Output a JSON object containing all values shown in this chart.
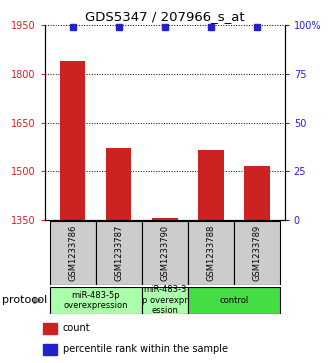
{
  "title": "GDS5347 / 207966_s_at",
  "samples": [
    "GSM1233786",
    "GSM1233787",
    "GSM1233790",
    "GSM1233788",
    "GSM1233789"
  ],
  "counts": [
    1840,
    1570,
    1355,
    1565,
    1515
  ],
  "percentiles": [
    99,
    99,
    99,
    99,
    99
  ],
  "ylim_left": [
    1350,
    1950
  ],
  "ylim_right": [
    0,
    100
  ],
  "yticks_left": [
    1350,
    1500,
    1650,
    1800,
    1950
  ],
  "yticks_right": [
    0,
    25,
    50,
    75,
    100
  ],
  "yticks_right_labels": [
    "0",
    "25",
    "50",
    "75",
    "100%"
  ],
  "bar_color": "#cc2222",
  "dot_color": "#2222cc",
  "protocol_label": "protocol",
  "legend_count_label": "count",
  "legend_percentile_label": "percentile rank within the sample",
  "background_color": "#ffffff",
  "sample_box_color": "#cccccc",
  "group_info": [
    {
      "samples": [
        0,
        1
      ],
      "label": "miR-483-5p\noverexpression",
      "color": "#aaffaa"
    },
    {
      "samples": [
        2
      ],
      "label": "miR-483-3\np overexpr\nession",
      "color": "#aaffaa"
    },
    {
      "samples": [
        3,
        4
      ],
      "label": "control",
      "color": "#44dd44"
    }
  ],
  "title_fontsize": 9.5,
  "tick_fontsize": 7,
  "sample_fontsize": 6,
  "protocol_group_fontsize": 6,
  "legend_fontsize": 7
}
